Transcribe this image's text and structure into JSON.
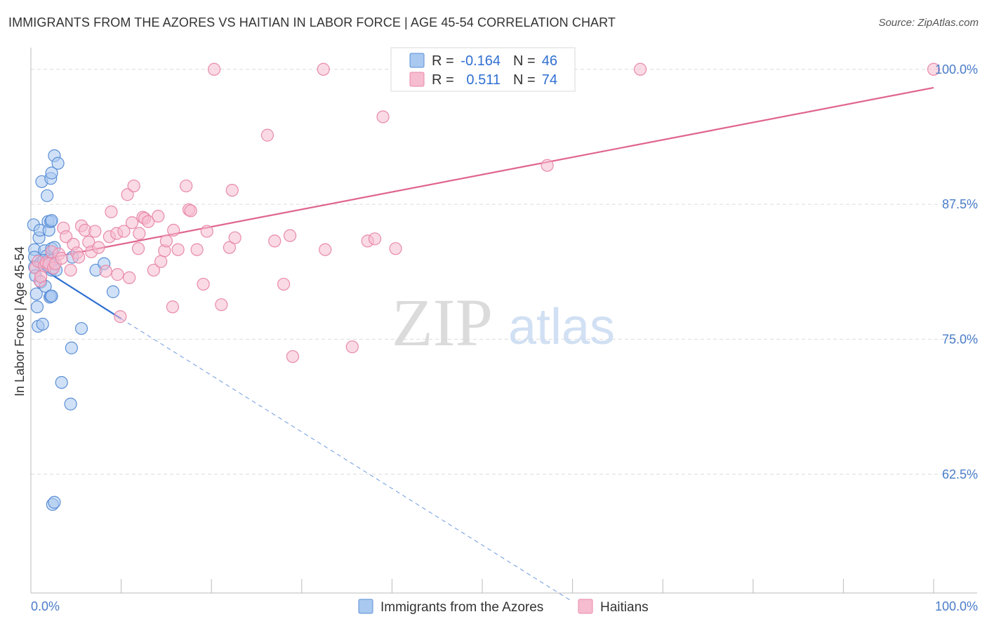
{
  "title": "IMMIGRANTS FROM THE AZORES VS HAITIAN IN LABOR FORCE | AGE 45-54 CORRELATION CHART",
  "source": "Source: ZipAtlas.com",
  "watermark": {
    "zip": "ZIP",
    "atlas": "atlas"
  },
  "colors": {
    "blue_fill": "#a9c9f0",
    "blue_stroke": "#5b8fd6",
    "blue_line": "#2f6fd1",
    "pink_fill": "#f6bcd0",
    "pink_stroke": "#e88aaa",
    "pink_line": "#e0648e",
    "grid": "#dcdcdc",
    "tick_text": "#4a7cc9"
  },
  "stats": {
    "r_label": "R =",
    "n_label": "N =",
    "series": [
      {
        "r": "-0.164",
        "n": "46"
      },
      {
        "r": "0.511",
        "n": "74"
      }
    ]
  },
  "chart_data": {
    "type": "scatter",
    "title": "IMMIGRANTS FROM THE AZORES VS HAITIAN IN LABOR FORCE | AGE 45-54 CORRELATION CHART",
    "xlabel": "",
    "ylabel": "In Labor Force | Age 45-54",
    "xlim": [
      0,
      100
    ],
    "ylim": [
      51.5,
      102
    ],
    "x_tick_labels": [
      {
        "value": 0,
        "label": "0.0%"
      },
      {
        "value": 100,
        "label": "100.0%"
      }
    ],
    "x_minor_ticks": [
      10,
      20,
      30,
      40,
      50,
      60,
      70,
      80,
      90,
      100
    ],
    "y_ticks": [
      {
        "value": 62.5,
        "label": "62.5%"
      },
      {
        "value": 75.0,
        "label": "75.0%"
      },
      {
        "value": 87.5,
        "label": "87.5%"
      },
      {
        "value": 100.0,
        "label": "100.0%"
      }
    ],
    "legend": [
      "Immigrants from the Azores",
      "Haitians"
    ],
    "series": [
      {
        "name": "Immigrants from the Azores",
        "r": -0.164,
        "n": 46,
        "trend": {
          "solid": [
            [
              0,
              82.2
            ],
            [
              10,
              76.9
            ]
          ],
          "dashed": [
            [
              10,
              76.9
            ],
            [
              60,
              50.7
            ]
          ]
        },
        "points": [
          [
            0.3,
            85.6
          ],
          [
            0.4,
            83.3
          ],
          [
            0.4,
            82.6
          ],
          [
            0.4,
            81.7
          ],
          [
            0.5,
            80.9
          ],
          [
            0.6,
            79.2
          ],
          [
            0.7,
            78.0
          ],
          [
            0.8,
            76.2
          ],
          [
            0.9,
            84.4
          ],
          [
            1.0,
            85.1
          ],
          [
            1.1,
            82.1
          ],
          [
            1.1,
            80.3
          ],
          [
            1.2,
            89.6
          ],
          [
            1.3,
            76.4
          ],
          [
            1.5,
            83.2
          ],
          [
            1.6,
            79.9
          ],
          [
            1.7,
            82.7
          ],
          [
            1.8,
            88.3
          ],
          [
            1.9,
            85.9
          ],
          [
            2.0,
            85.1
          ],
          [
            2.1,
            78.9
          ],
          [
            2.2,
            85.9
          ],
          [
            2.3,
            86.0
          ],
          [
            2.1,
            82.5
          ],
          [
            2.3,
            81.4
          ],
          [
            1.4,
            82.3
          ],
          [
            2.2,
            79.0
          ],
          [
            2.3,
            79.0
          ],
          [
            2.2,
            89.9
          ],
          [
            2.3,
            90.4
          ],
          [
            2.4,
            82.3
          ],
          [
            2.3,
            83.4
          ],
          [
            2.6,
            83.5
          ],
          [
            2.8,
            81.4
          ],
          [
            2.4,
            59.7
          ],
          [
            2.6,
            59.9
          ],
          [
            2.6,
            92.0
          ],
          [
            3.0,
            91.3
          ],
          [
            3.4,
            71.0
          ],
          [
            4.4,
            69.0
          ],
          [
            4.5,
            74.2
          ],
          [
            4.6,
            82.6
          ],
          [
            5.6,
            76.0
          ],
          [
            7.2,
            81.4
          ],
          [
            8.1,
            82.0
          ],
          [
            9.1,
            79.4
          ]
        ]
      },
      {
        "name": "Haitians",
        "r": 0.511,
        "n": 74,
        "trend": {
          "solid": [
            [
              0,
              82.2
            ],
            [
              100,
              98.3
            ]
          ]
        },
        "points": [
          [
            0.5,
            81.6
          ],
          [
            0.8,
            82.2
          ],
          [
            1.0,
            80.4
          ],
          [
            1.1,
            80.8
          ],
          [
            1.5,
            81.8
          ],
          [
            1.7,
            82.1
          ],
          [
            2.0,
            82.0
          ],
          [
            2.3,
            83.1
          ],
          [
            2.5,
            81.6
          ],
          [
            2.7,
            82.0
          ],
          [
            3.1,
            82.9
          ],
          [
            3.4,
            82.5
          ],
          [
            3.6,
            85.3
          ],
          [
            3.9,
            84.5
          ],
          [
            4.4,
            81.4
          ],
          [
            4.7,
            83.8
          ],
          [
            5.1,
            83.0
          ],
          [
            5.3,
            82.6
          ],
          [
            5.6,
            85.5
          ],
          [
            6.0,
            85.1
          ],
          [
            6.4,
            84.0
          ],
          [
            6.7,
            83.1
          ],
          [
            7.1,
            85.0
          ],
          [
            7.5,
            83.5
          ],
          [
            8.3,
            81.3
          ],
          [
            8.7,
            84.5
          ],
          [
            8.9,
            86.8
          ],
          [
            9.5,
            84.8
          ],
          [
            9.6,
            81.0
          ],
          [
            9.9,
            77.1
          ],
          [
            10.3,
            85.0
          ],
          [
            10.7,
            88.4
          ],
          [
            10.9,
            80.7
          ],
          [
            11.2,
            85.8
          ],
          [
            11.4,
            89.2
          ],
          [
            11.9,
            83.4
          ],
          [
            12.0,
            84.8
          ],
          [
            12.4,
            86.3
          ],
          [
            12.6,
            86.2
          ],
          [
            13.0,
            85.9
          ],
          [
            13.6,
            81.4
          ],
          [
            14.1,
            86.4
          ],
          [
            14.4,
            82.2
          ],
          [
            14.8,
            83.2
          ],
          [
            15.0,
            84.1
          ],
          [
            15.7,
            78.0
          ],
          [
            15.8,
            85.1
          ],
          [
            16.3,
            83.3
          ],
          [
            17.2,
            89.2
          ],
          [
            17.5,
            87.0
          ],
          [
            17.7,
            86.9
          ],
          [
            18.4,
            83.3
          ],
          [
            19.1,
            80.1
          ],
          [
            19.5,
            85.0
          ],
          [
            20.3,
            100.0
          ],
          [
            21.1,
            78.2
          ],
          [
            22.0,
            83.5
          ],
          [
            22.3,
            88.8
          ],
          [
            22.6,
            84.4
          ],
          [
            26.2,
            93.9
          ],
          [
            27.0,
            84.1
          ],
          [
            28.0,
            80.1
          ],
          [
            28.7,
            84.6
          ],
          [
            29.0,
            73.4
          ],
          [
            32.4,
            100.0
          ],
          [
            32.6,
            83.3
          ],
          [
            35.6,
            74.3
          ],
          [
            37.3,
            84.1
          ],
          [
            38.1,
            84.3
          ],
          [
            39.0,
            95.6
          ],
          [
            40.4,
            83.4
          ],
          [
            57.2,
            91.1
          ],
          [
            67.5,
            100.0
          ],
          [
            100.0,
            100.0
          ]
        ]
      }
    ]
  }
}
